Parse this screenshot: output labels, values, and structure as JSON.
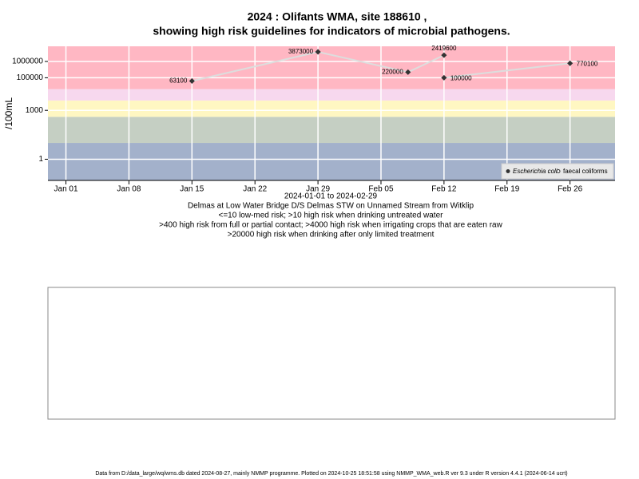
{
  "chart_data": {
    "type": "line",
    "title": "2024 : Olifants WMA, site 188610 ,",
    "title2": "showing high risk guidelines for indicators of microbial pathogens.",
    "y_label": "/100mL",
    "x_label": "2024-01-01 to 2024-02-29",
    "subtitle_lines": [
      "Delmas at Low Water Bridge D/S Delmas STW on Unnamed Stream from Witklip",
      "<=10 low-med risk; >10 high risk when drinking untreated water",
      ">400 high risk from full or partial contact; >4000 high risk when irrigating crops that are eaten raw",
      ">20000 high risk when drinking after only limited treatment"
    ],
    "log_y": true,
    "grid": true,
    "legend_position": "bottom-right",
    "xlim": [
      "2023-12-30",
      "2024-03-02"
    ],
    "xticks": [
      {
        "value": "2024-01-01",
        "label": "Jan 01"
      },
      {
        "value": "2024-01-08",
        "label": "Jan 08"
      },
      {
        "value": "2024-01-15",
        "label": "Jan 15"
      },
      {
        "value": "2024-01-22",
        "label": "Jan 22"
      },
      {
        "value": "2024-01-29",
        "label": "Jan 29"
      },
      {
        "value": "2024-02-05",
        "label": "Feb 05"
      },
      {
        "value": "2024-02-12",
        "label": "Feb 12"
      },
      {
        "value": "2024-02-19",
        "label": "Feb 19"
      },
      {
        "value": "2024-02-26",
        "label": "Feb 26"
      }
    ],
    "ylim": [
      0.05,
      8500000
    ],
    "yticks": [
      1,
      1000,
      100000,
      1000000
    ],
    "bands": [
      {
        "from": 0.05,
        "to": 10,
        "color": "#a3b1cb"
      },
      {
        "from": 10,
        "to": 400,
        "color": "#c5cfc3"
      },
      {
        "from": 400,
        "to": 4000,
        "color": "#fff7c2"
      },
      {
        "from": 4000,
        "to": 20000,
        "color": "#f7d8ee"
      },
      {
        "from": 20000,
        "to": 8500000,
        "color": "#ffb7c3"
      }
    ],
    "series": [
      {
        "name": "Escherichia coli",
        "color": "#dddddd",
        "marker_fill": "#333333",
        "x": [
          "2024-01-15",
          "2024-01-29",
          "2024-02-08",
          "2024-02-12"
        ],
        "values": [
          63100,
          3873000,
          220000,
          2419600
        ]
      },
      {
        "name": "faecal coliforms",
        "color": "#dddddd",
        "marker_fill": "#ffffff",
        "x": [
          "2024-02-12",
          "2024-02-26"
        ],
        "values": [
          100000,
          770100
        ]
      }
    ],
    "footer": "Data from D:/data_large/wq/wms.db dated 2024-08-27, mainly NMMP programme. Plotted on 2024-10-25 18:51:58 using NMMP_WMA_web.R ver 9.3 under R version 4.4.1 (2024-06-14 ucrt)"
  }
}
